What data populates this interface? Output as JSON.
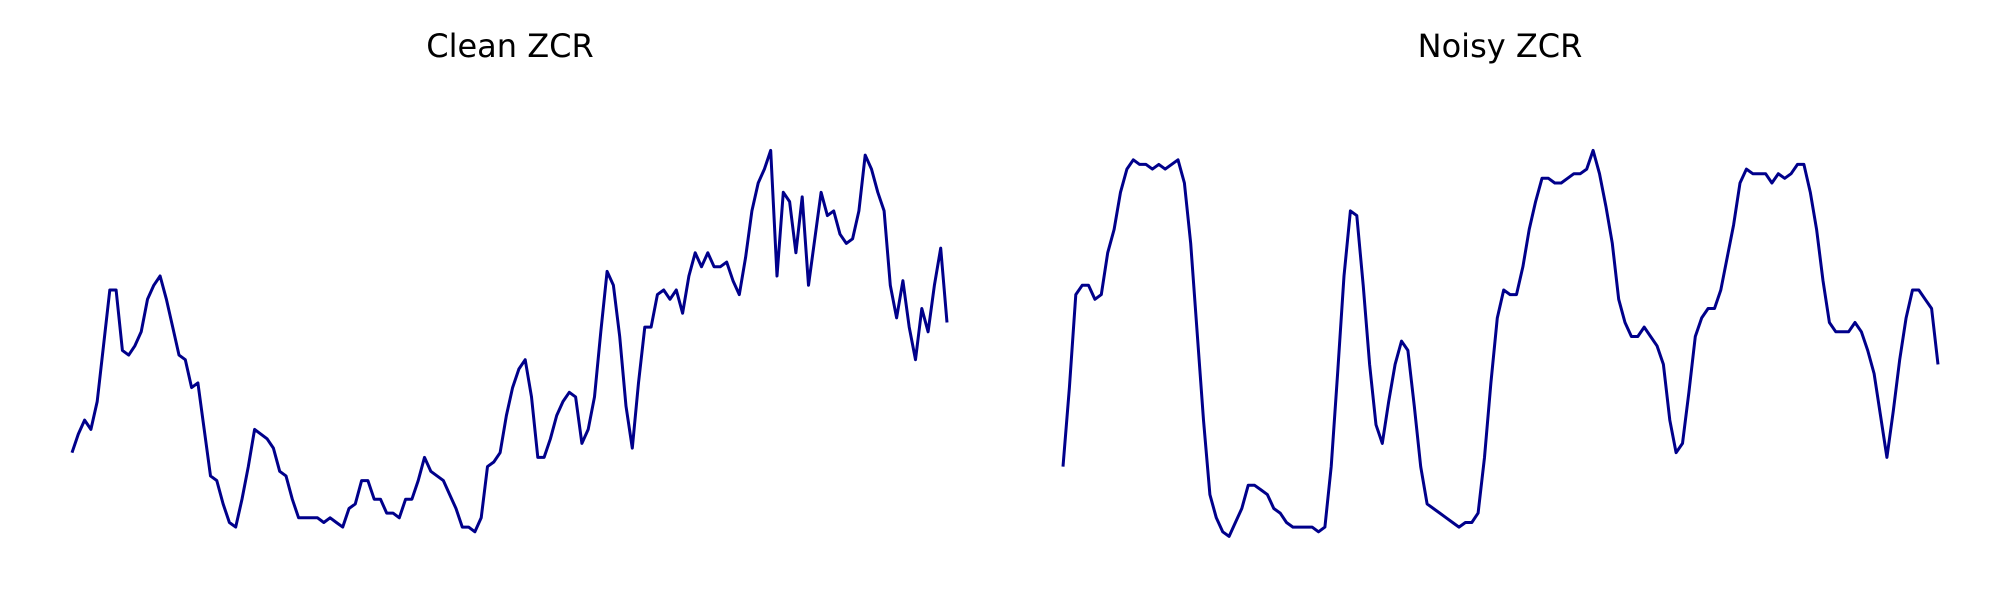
{
  "chart_data": [
    {
      "type": "line",
      "title": "Clean ZCR",
      "xlabel": "",
      "ylabel": "",
      "axes_visible": false,
      "grid": false,
      "color": "#00008b",
      "ylim": [
        0,
        1
      ],
      "y": [
        0.22,
        0.26,
        0.29,
        0.27,
        0.33,
        0.45,
        0.57,
        0.57,
        0.44,
        0.43,
        0.45,
        0.48,
        0.55,
        0.58,
        0.6,
        0.55,
        0.49,
        0.43,
        0.42,
        0.36,
        0.37,
        0.27,
        0.17,
        0.16,
        0.11,
        0.07,
        0.06,
        0.12,
        0.19,
        0.27,
        0.26,
        0.25,
        0.23,
        0.18,
        0.17,
        0.12,
        0.08,
        0.08,
        0.08,
        0.08,
        0.07,
        0.08,
        0.07,
        0.06,
        0.1,
        0.11,
        0.16,
        0.16,
        0.12,
        0.12,
        0.09,
        0.09,
        0.08,
        0.12,
        0.12,
        0.16,
        0.21,
        0.18,
        0.17,
        0.16,
        0.13,
        0.1,
        0.06,
        0.06,
        0.05,
        0.08,
        0.19,
        0.2,
        0.22,
        0.3,
        0.36,
        0.4,
        0.42,
        0.34,
        0.21,
        0.21,
        0.25,
        0.3,
        0.33,
        0.35,
        0.34,
        0.24,
        0.27,
        0.34,
        0.48,
        0.61,
        0.58,
        0.47,
        0.32,
        0.23,
        0.37,
        0.49,
        0.49,
        0.56,
        0.57,
        0.55,
        0.57,
        0.52,
        0.6,
        0.65,
        0.62,
        0.65,
        0.62,
        0.62,
        0.63,
        0.59,
        0.56,
        0.64,
        0.74,
        0.8,
        0.83,
        0.87,
        0.6,
        0.78,
        0.76,
        0.65,
        0.77,
        0.58,
        0.68,
        0.78,
        0.73,
        0.74,
        0.69,
        0.67,
        0.68,
        0.74,
        0.86,
        0.83,
        0.78,
        0.74,
        0.58,
        0.51,
        0.59,
        0.49,
        0.42,
        0.53,
        0.48,
        0.58,
        0.66,
        0.5
      ]
    },
    {
      "type": "line",
      "title": "Noisy ZCR",
      "xlabel": "",
      "ylabel": "",
      "axes_visible": false,
      "grid": false,
      "color": "#00008b",
      "ylim": [
        0,
        1
      ],
      "y": [
        0.19,
        0.36,
        0.56,
        0.58,
        0.58,
        0.55,
        0.56,
        0.65,
        0.7,
        0.78,
        0.83,
        0.85,
        0.84,
        0.84,
        0.83,
        0.84,
        0.83,
        0.84,
        0.85,
        0.8,
        0.67,
        0.48,
        0.29,
        0.13,
        0.08,
        0.05,
        0.04,
        0.07,
        0.1,
        0.15,
        0.15,
        0.14,
        0.13,
        0.1,
        0.09,
        0.07,
        0.06,
        0.06,
        0.06,
        0.06,
        0.05,
        0.06,
        0.19,
        0.39,
        0.6,
        0.74,
        0.73,
        0.58,
        0.41,
        0.28,
        0.24,
        0.33,
        0.41,
        0.46,
        0.44,
        0.32,
        0.19,
        0.11,
        0.1,
        0.09,
        0.08,
        0.07,
        0.06,
        0.07,
        0.07,
        0.09,
        0.21,
        0.37,
        0.51,
        0.57,
        0.56,
        0.56,
        0.62,
        0.7,
        0.76,
        0.81,
        0.81,
        0.8,
        0.8,
        0.81,
        0.82,
        0.82,
        0.83,
        0.87,
        0.82,
        0.75,
        0.67,
        0.55,
        0.5,
        0.47,
        0.47,
        0.49,
        0.47,
        0.45,
        0.41,
        0.29,
        0.22,
        0.24,
        0.35,
        0.47,
        0.51,
        0.53,
        0.53,
        0.57,
        0.64,
        0.71,
        0.8,
        0.83,
        0.82,
        0.82,
        0.82,
        0.8,
        0.82,
        0.81,
        0.82,
        0.84,
        0.84,
        0.78,
        0.7,
        0.59,
        0.5,
        0.48,
        0.48,
        0.48,
        0.5,
        0.48,
        0.44,
        0.39,
        0.3,
        0.21,
        0.31,
        0.42,
        0.51,
        0.57,
        0.57,
        0.55,
        0.53,
        0.41
      ]
    }
  ]
}
